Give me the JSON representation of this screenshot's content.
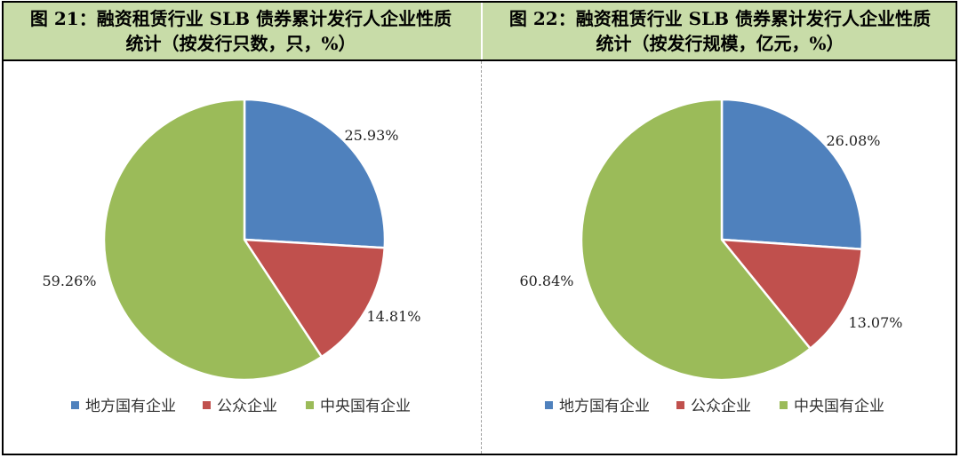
{
  "header": {
    "left_title_line1": "图 21：融资租赁行业 SLB 债券累计发行人企业性质",
    "left_title_line2": "统计（按发行只数，只，%）",
    "right_title_line1": "图 22：融资租赁行业 SLB 债券累计发行人企业性质",
    "right_title_line2": "统计（按发行规模，亿元，%）"
  },
  "chart_data": [
    {
      "type": "pie",
      "title": "图 21：融资租赁行业 SLB 债券累计发行人企业性质统计（按发行只数，只，%）",
      "categories": [
        "地方国有企业",
        "公众企业",
        "中央国有企业"
      ],
      "values": [
        25.93,
        14.81,
        59.26
      ],
      "labels": [
        "25.93%",
        "14.81%",
        "59.26%"
      ],
      "colors": [
        "#4f81bd",
        "#c0504d",
        "#9bbb59"
      ],
      "legend": "bottom"
    },
    {
      "type": "pie",
      "title": "图 22：融资租赁行业 SLB 债券累计发行人企业性质统计（按发行规模，亿元，%）",
      "categories": [
        "地方国有企业",
        "公众企业",
        "中央国有企业"
      ],
      "values": [
        26.08,
        13.07,
        60.84
      ],
      "labels": [
        "26.08%",
        "13.07%",
        "60.84%"
      ],
      "colors": [
        "#4f81bd",
        "#c0504d",
        "#9bbb59"
      ],
      "legend": "bottom"
    }
  ]
}
